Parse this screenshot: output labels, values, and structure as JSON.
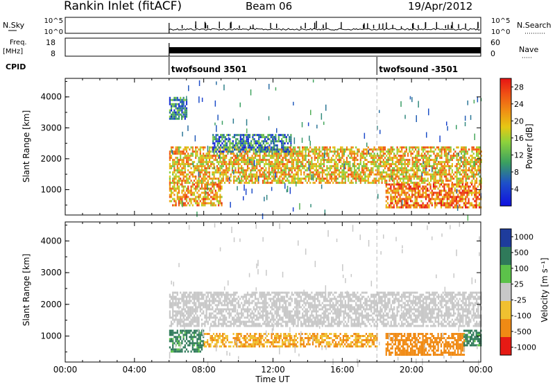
{
  "header": {
    "title": "Rankin Inlet (fitACF)",
    "beam": "Beam 06",
    "date": "19/Apr/2012"
  },
  "strips": {
    "nsky": {
      "label": "N.Sky",
      "ticks": [
        "10^5",
        "10^0"
      ],
      "right_ticks": [
        "10^5",
        "10^0"
      ],
      "right_label": "N.Search"
    },
    "freq": {
      "label_line1": "Freq.",
      "label_line2": "[MHz]",
      "ticks": [
        "18",
        "8"
      ],
      "right_ticks": [
        "60",
        "0"
      ],
      "right_label": "Nave"
    },
    "cpid": {
      "label": "CPID",
      "segments": [
        {
          "name": "twofsound 3501",
          "start_hour": 6.0
        },
        {
          "name": "twofsound -3501",
          "start_hour": 18.0
        }
      ]
    }
  },
  "x_axis": {
    "label": "Time UT",
    "ticks": [
      "00:00",
      "04:00",
      "08:00",
      "12:00",
      "16:00",
      "20:00",
      "00:00"
    ],
    "range_hours": [
      0,
      24
    ]
  },
  "panels": [
    {
      "ylabel": "Slant Range [km]",
      "yticks": [
        "1000",
        "2000",
        "3000",
        "4000"
      ],
      "colorbar_label": "Power [dB]",
      "colorbar_ticks": [
        "28",
        "24",
        "20",
        "16",
        "12",
        "8",
        "4"
      ]
    },
    {
      "ylabel": "Slant Range [km]",
      "yticks": [
        "1000",
        "2000",
        "3000",
        "4000"
      ],
      "colorbar_label": "Velocity [m s⁻¹]",
      "colorbar_ticks": [
        "1000",
        "500",
        "100",
        "25",
        "-25",
        "-100",
        "-500",
        "-1000"
      ]
    }
  ],
  "chart_data": [
    {
      "type": "heatmap",
      "title": "Rankin Inlet (fitACF)",
      "xlabel": "Time UT",
      "ylabel": "Slant Range [km]",
      "xlim_hours": [
        0,
        24
      ],
      "ylim": [
        180,
        4600
      ],
      "colorbar": {
        "label": "Power [dB]",
        "ticks": [
          28,
          24,
          20,
          16,
          12,
          8,
          4
        ],
        "range": [
          0,
          30
        ]
      },
      "data_start_hour": 6.0,
      "regions": [
        {
          "t0": 6.0,
          "t1": 24.0,
          "r0": 1200,
          "r1": 2400,
          "value": 20
        },
        {
          "t0": 6.0,
          "t1": 9.0,
          "r0": 500,
          "r1": 1200,
          "value": 22
        },
        {
          "t0": 18.5,
          "t1": 24.0,
          "r0": 400,
          "r1": 1200,
          "value": 24
        },
        {
          "t0": 8.5,
          "t1": 13.0,
          "r0": 2200,
          "r1": 2800,
          "value": 8
        },
        {
          "t0": 6.0,
          "t1": 7.0,
          "r0": 3300,
          "r1": 4000,
          "value": 8
        }
      ]
    },
    {
      "type": "heatmap",
      "title": "Rankin Inlet (fitACF)",
      "xlabel": "Time UT",
      "ylabel": "Slant Range [km]",
      "xlim_hours": [
        0,
        24
      ],
      "ylim": [
        180,
        4600
      ],
      "colorbar": {
        "label": "Velocity [m s⁻¹]",
        "ticks": [
          1000,
          500,
          100,
          25,
          -25,
          -100,
          -500,
          -1000
        ]
      },
      "data_start_hour": 6.0,
      "regions": [
        {
          "t0": 6.0,
          "t1": 24.0,
          "r0": 1300,
          "r1": 2400,
          "value": 0
        },
        {
          "t0": 6.0,
          "t1": 8.0,
          "r0": 500,
          "r1": 1200,
          "value": 150
        },
        {
          "t0": 8.0,
          "t1": 18.0,
          "r0": 700,
          "r1": 1100,
          "value": -100
        },
        {
          "t0": 18.5,
          "t1": 23.0,
          "r0": 400,
          "r1": 1100,
          "value": -300
        },
        {
          "t0": 23.0,
          "t1": 24.0,
          "r0": 700,
          "r1": 1200,
          "value": 150
        }
      ]
    }
  ]
}
